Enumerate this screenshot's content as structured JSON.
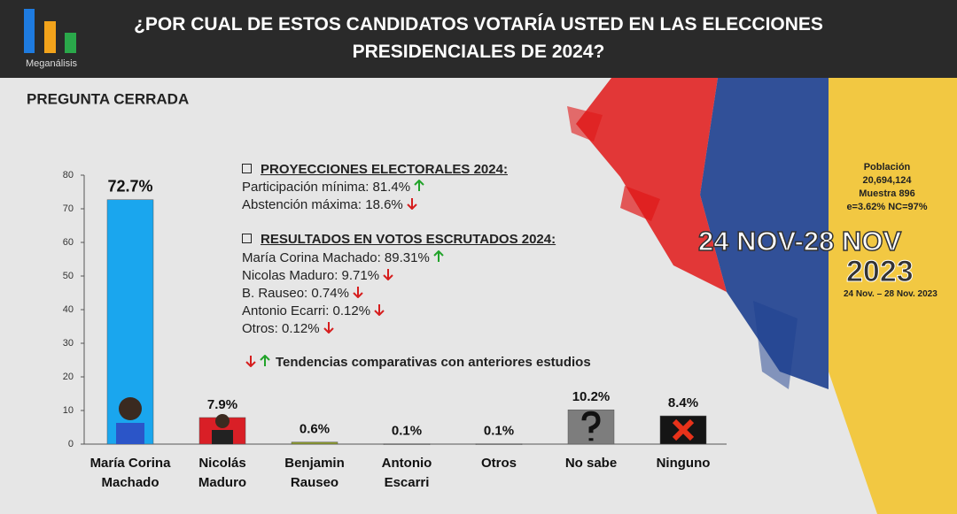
{
  "brand": "Meganálisis",
  "chart_data": {
    "type": "bar",
    "title": "¿POR CUAL DE ESTOS CANDIDATOS VOTARÍA USTED EN LAS ELECCIONES PRESIDENCIALES DE 2024?",
    "subtitle": "PREGUNTA CERRADA",
    "categories": [
      "María Corina Machado",
      "Nicolás Maduro",
      "Benjamin Rauseo",
      "Antonio Escarri",
      "Otros",
      "No sabe",
      "Ninguno"
    ],
    "values": [
      72.7,
      7.9,
      0.6,
      0.1,
      0.1,
      10.2,
      8.4
    ],
    "value_labels": [
      "72.7%",
      "7.9%",
      "0.6%",
      "0.1%",
      "0.1%",
      "10.2%",
      "8.4%"
    ],
    "colors": [
      "#1aa6ee",
      "#d91f26",
      "#8b9a2c",
      "#9a9a9a",
      "#9a9a9a",
      "#7d7d7d",
      "#151515"
    ],
    "ylim": [
      0,
      80
    ],
    "yticks": [
      0,
      10,
      20,
      30,
      40,
      50,
      60,
      70,
      80
    ]
  },
  "notes": {
    "heading1": "PROYECCIONES ELECTORALES 2024:",
    "lines1": [
      {
        "text": "Participación mínima: 81.4%",
        "trend": "up"
      },
      {
        "text": "Abstención máxima: 18.6%",
        "trend": "down"
      }
    ],
    "heading2": "RESULTADOS EN VOTOS ESCRUTADOS 2024:",
    "lines2": [
      {
        "text": "María Corina Machado: 89.31%",
        "trend": "up"
      },
      {
        "text": "Nicolas Maduro: 9.71%",
        "trend": "down"
      },
      {
        "text": "B. Rauseo: 0.74%",
        "trend": "down"
      },
      {
        "text": "Antonio Ecarri: 0.12%",
        "trend": "down"
      },
      {
        "text": "Otros: 0.12%",
        "trend": "down"
      }
    ],
    "legend": "Tendencias comparativas con anteriores estudios"
  },
  "sample": [
    "Población",
    "20,694,124",
    "Muestra 896",
    "e=3.62% NC=97%"
  ],
  "dates": {
    "big": "24 NOV-28 NOV",
    "year": "2023",
    "small": "24 Nov. – 28 Nov. 2023"
  }
}
